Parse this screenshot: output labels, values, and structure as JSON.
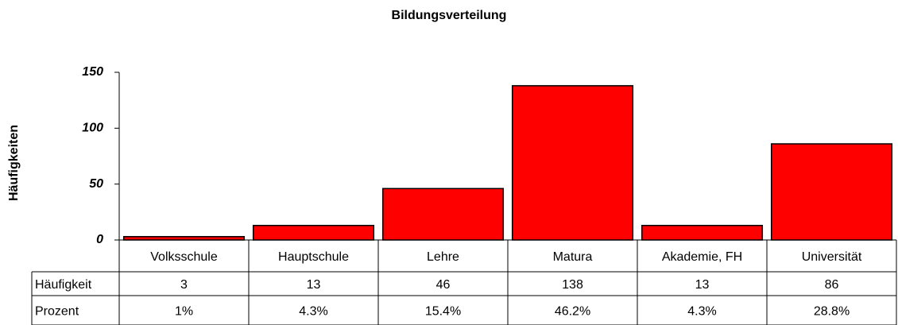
{
  "chart_data": {
    "type": "bar",
    "title": "Bildungsverteilung",
    "y_label": "Häufigkeiten",
    "categories": [
      "Volksschule",
      "Hauptschule",
      "Lehre",
      "Matura",
      "Akademie, FH",
      "Universität"
    ],
    "values": [
      3,
      13,
      46,
      138,
      13,
      86
    ],
    "color": "#ff0000",
    "ylim": [
      0,
      150
    ],
    "yticks": [
      0,
      50,
      100,
      150
    ],
    "grid": false,
    "table_rows": [
      {
        "label": "Häufigkeit"
      },
      {
        "label": "Prozent",
        "cells": [
          "1%",
          "4.3%",
          "15.4%",
          "46.2%",
          "4.3%",
          "28.8%"
        ]
      }
    ]
  }
}
